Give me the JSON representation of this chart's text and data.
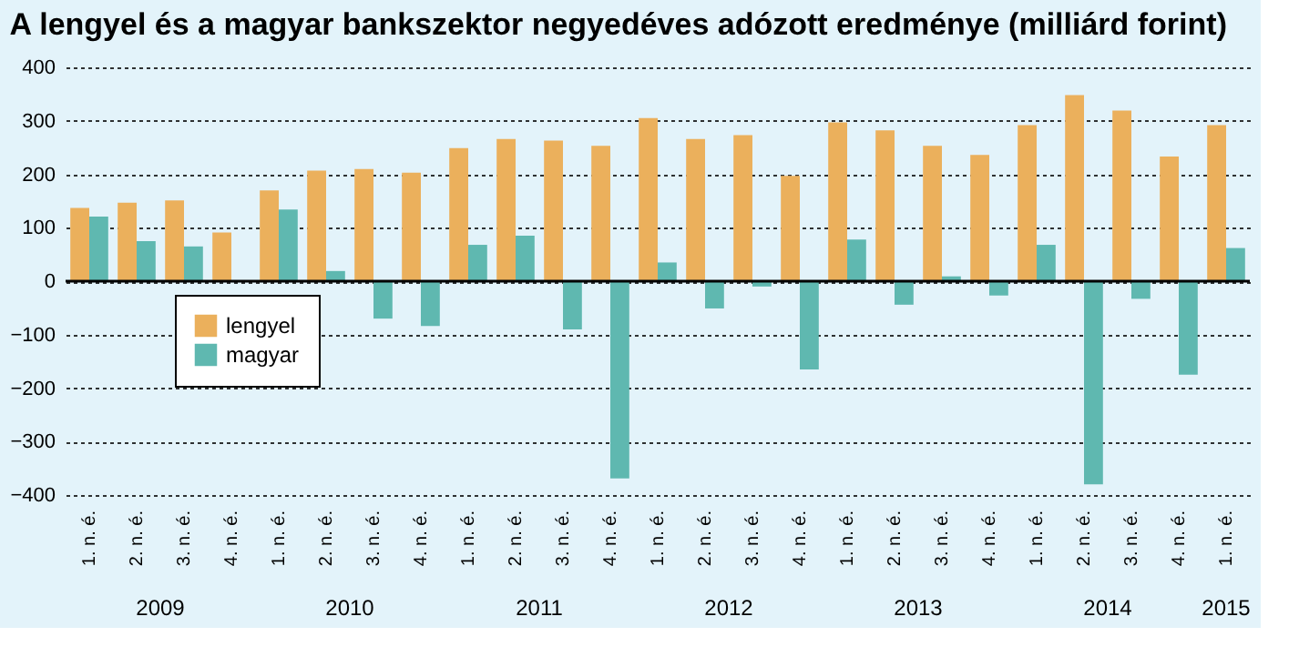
{
  "chart_data": {
    "type": "bar",
    "title": "A lengyel és a magyar bankszektor negyedéves adózott eredménye  (milliárd forint)",
    "categories": [
      "1. n. é.",
      "2. n. é.",
      "3. n. é.",
      "4. n. é.",
      "1. n. é.",
      "2. n. é.",
      "3. n. é.",
      "4. n. é.",
      "1. n. é.",
      "2. n. é.",
      "3. n. é.",
      "4. n. é.",
      "1. n. é.",
      "2. n. é.",
      "3. n. é.",
      "4. n. é.",
      "1. n. é.",
      "2. n. é.",
      "3. n. é.",
      "4. n. é.",
      "1. n. é.",
      "2. n. é.",
      "3. n. é.",
      "4. n. é.",
      "1. n. é."
    ],
    "series": [
      {
        "name": "lengyel",
        "color": "#ebb05c",
        "values": [
          137,
          147,
          151,
          91,
          170,
          207,
          210,
          203,
          249,
          266,
          263,
          253,
          305,
          266,
          273,
          197,
          297,
          282,
          253,
          236,
          292,
          348,
          319,
          233,
          292
        ]
      },
      {
        "name": "magyar",
        "color": "#5fb8b0",
        "values": [
          121,
          75,
          65,
          null,
          134,
          19,
          -70,
          -84,
          68,
          85,
          -90,
          -369,
          35,
          -51,
          -10,
          -165,
          78,
          -44,
          9,
          -27,
          68,
          -380,
          -33,
          -175,
          62
        ]
      }
    ],
    "annotations": [
      "2009",
      "2010",
      "2011",
      "2012",
      "2013",
      "2014",
      "2015"
    ],
    "ylim": [
      -400,
      400
    ],
    "yticks": [
      -400,
      -300,
      -200,
      -100,
      0,
      100,
      200,
      300,
      400
    ],
    "ref_lines": [
      {
        "axis": "y",
        "value": 0,
        "color": "#000000"
      }
    ],
    "grid": "y",
    "legend": "bottom left"
  }
}
